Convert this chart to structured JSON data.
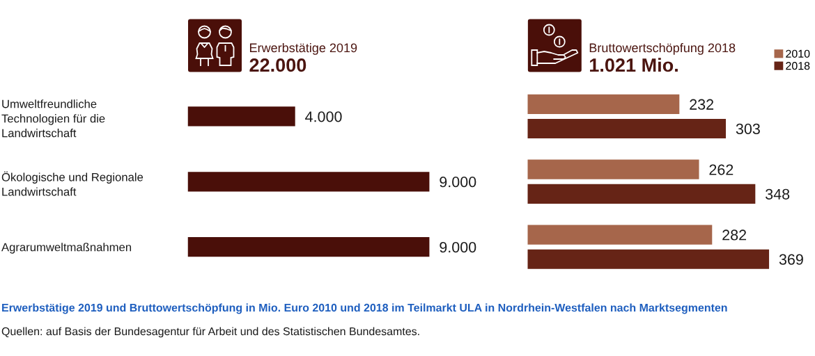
{
  "chart_data": [
    {
      "type": "bar",
      "orientation": "horizontal",
      "title": "Erwerbstätige 2019",
      "subtitle": "22.000",
      "categories": [
        "Umweltfreundliche Technologien für die Landwirtschaft",
        "Ökologische und Regionale Landwirtschaft",
        "Agrarumweltmaßnahmen"
      ],
      "values": [
        4000,
        9000,
        9000
      ],
      "color": "#4a0f09",
      "value_labels": [
        "4.000",
        "9.000",
        "9.000"
      ],
      "tick_labels": "y",
      "annotations": [
        "Erwerbstätige 2019 und Bruttowertschöpfung in Mio. Euro 2010 und 2018 im Teilmarkt ULA in Nordrhein-Westfalen nach Marktsegmenten",
        "Quellen: auf Basis der Bundesagentur für Arbeit und des Statistischen Bundesamtes."
      ]
    },
    {
      "type": "bar",
      "orientation": "horizontal",
      "title": "Bruttowertschöpfung 2018",
      "subtitle": "1.021 Mio.",
      "categories": [
        null,
        null,
        null
      ],
      "series": [
        {
          "name": "2010",
          "color": "#a6664b",
          "values": [
            232,
            262,
            282
          ]
        },
        {
          "name": "2018",
          "color": "#662416",
          "values": [
            303,
            348,
            369
          ]
        }
      ],
      "data_labels": true,
      "legend": "top right",
      "tick_labels": "y"
    }
  ]
}
